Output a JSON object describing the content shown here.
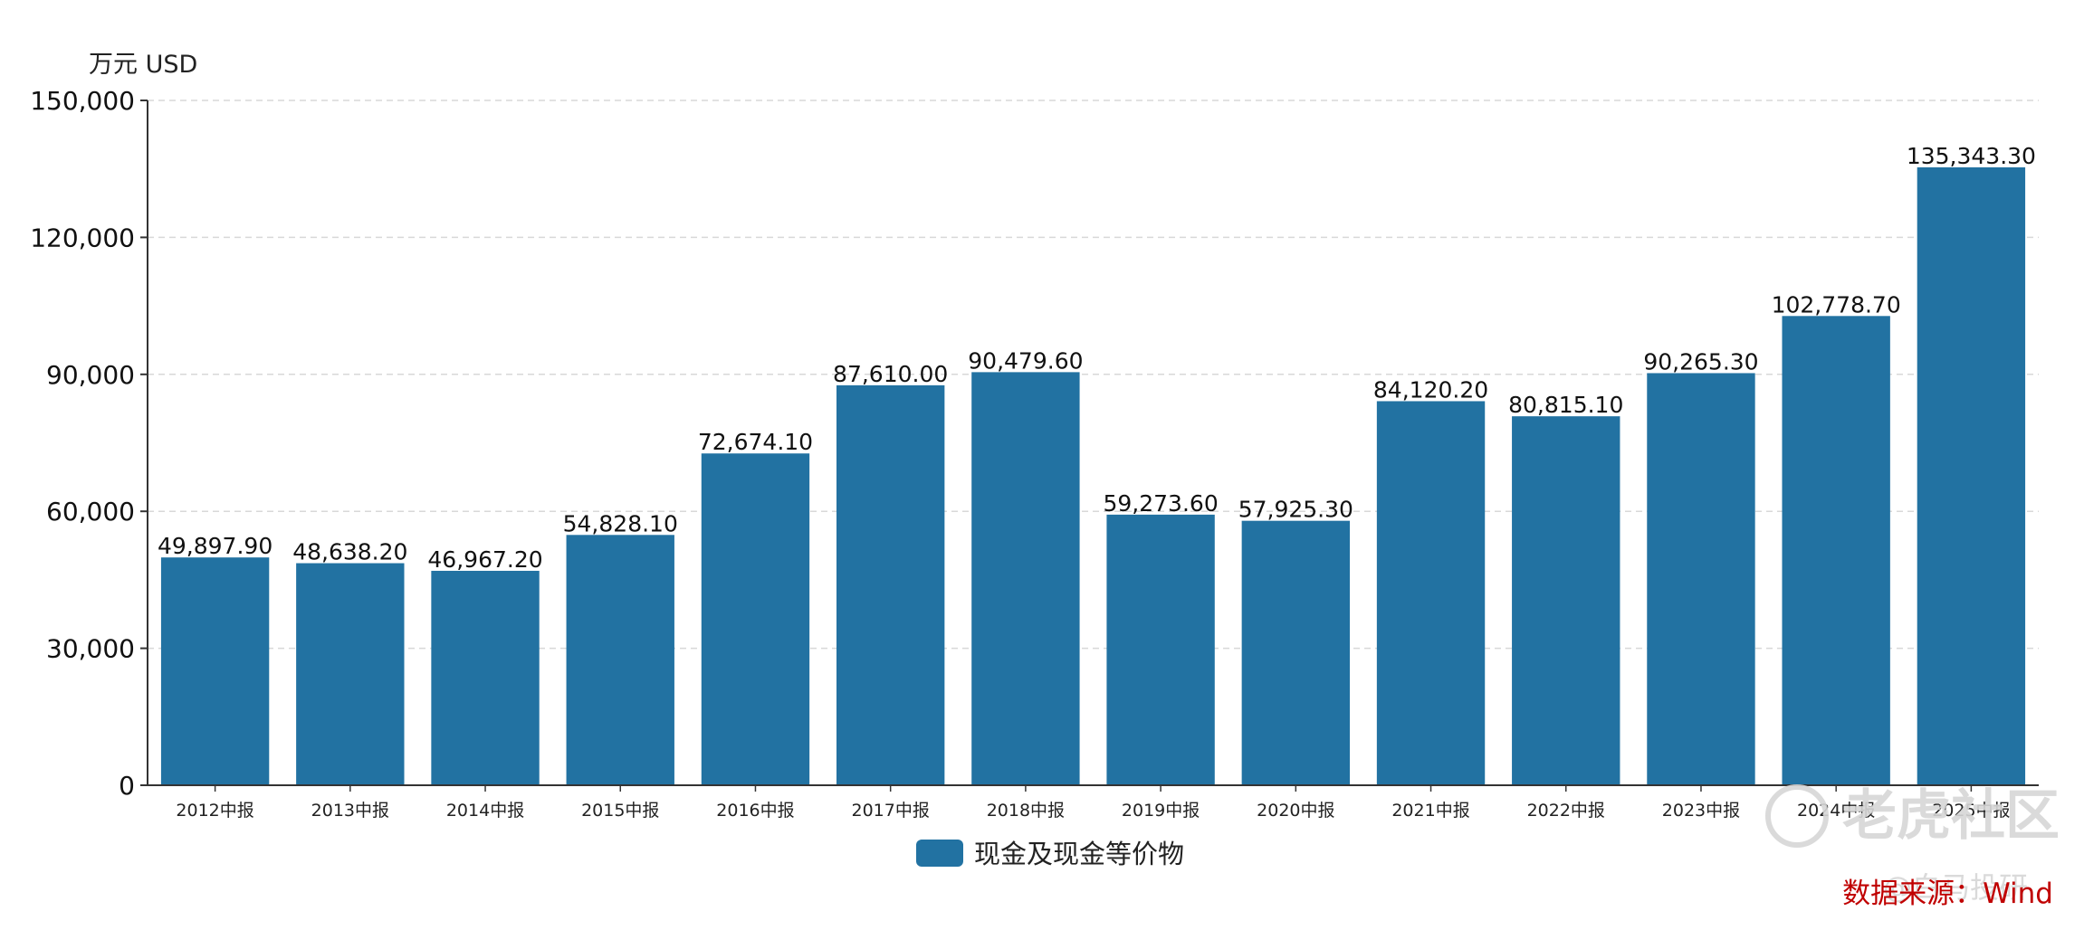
{
  "chart_data": {
    "type": "bar",
    "unit_label": "万元  USD",
    "categories": [
      "2012中报",
      "2013中报",
      "2014中报",
      "2015中报",
      "2016中报",
      "2017中报",
      "2018中报",
      "2019中报",
      "2020中报",
      "2021中报",
      "2022中报",
      "2023中报",
      "2024中报",
      "2025中报"
    ],
    "series": [
      {
        "name": "现金及现金等价物",
        "color": "#2272a2",
        "values": [
          49897.9,
          48638.2,
          46967.2,
          54828.1,
          72674.1,
          87610.0,
          90479.6,
          59273.6,
          57925.3,
          84120.2,
          80815.1,
          90265.3,
          102778.7,
          135343.3
        ],
        "labels": [
          "49,897.90",
          "48,638.20",
          "46,967.20",
          "54,828.10",
          "72,674.10",
          "87,610.00",
          "90,479.60",
          "59,273.60",
          "57,925.30",
          "84,120.20",
          "80,815.10",
          "90,265.30",
          "102,778.70",
          "135,343.30"
        ]
      }
    ],
    "ylim": [
      0,
      150000
    ],
    "yticks": [
      0,
      30000,
      60000,
      90000,
      120000,
      150000
    ],
    "ytick_labels": [
      "0",
      "30,000",
      "60,000",
      "90,000",
      "120,000",
      "150,000"
    ],
    "grid": true,
    "legend_position": "bottom-center",
    "source": "数据来源：Wind"
  },
  "watermark": {
    "brand": "老虎社区",
    "sub": "@白马投研"
  }
}
